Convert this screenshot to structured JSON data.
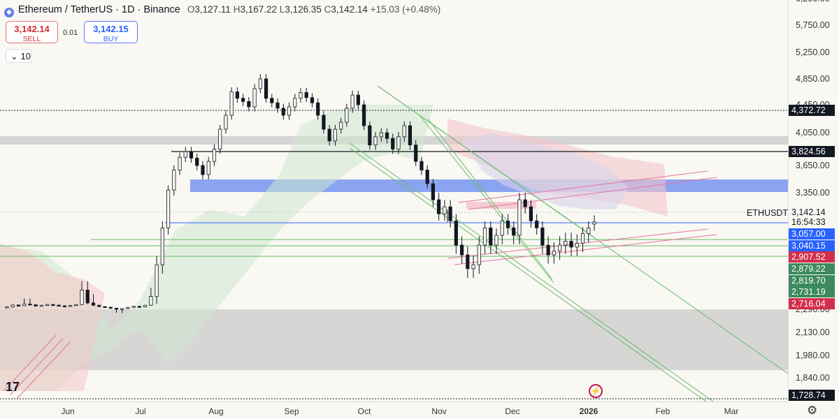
{
  "header": {
    "logo_glyph": "◆",
    "title": "Ethereum / TetherUS · 1D · Binance",
    "open_label": "O",
    "open": "3,127.11",
    "high_label": "H",
    "high": "3,167.22",
    "low_label": "L",
    "low": "3,126.35",
    "close_label": "C",
    "close": "3,142.14",
    "change": "+15.03 (+0.48%)"
  },
  "trade": {
    "sell_price": "3,142.14",
    "sell_label": "SELL",
    "spread": "0.01",
    "buy_price": "3,142.15",
    "buy_label": "BUY"
  },
  "indicators_count": "10",
  "symbol_label": "ETHUSDT",
  "logo_text": "17",
  "bolt_glyph": "⚡",
  "gear_glyph": "⚙",
  "colors": {
    "up": "#131722",
    "down": "#131722",
    "green_line": "#66bb6a",
    "pink_line": "#e57399",
    "blue_zone": "#6f8ff0",
    "grey_zone": "#c9c9c9"
  },
  "chart_data": {
    "type": "candlestick",
    "title": "Ethereum / TetherUS · 1D · Binance",
    "y_ticks": [
      "5,750.00",
      "5,250.00",
      "4,850.00",
      "4,450.00",
      "4,050.00",
      "3,650.00",
      "3,350.00",
      "2,290.00",
      "2,130.00",
      "1,980.00",
      "1,840.00"
    ],
    "y_top_partial": "6,250.00",
    "x_ticks": [
      {
        "label": "Jun",
        "bold": false
      },
      {
        "label": "Jul",
        "bold": false
      },
      {
        "label": "Aug",
        "bold": false
      },
      {
        "label": "Sep",
        "bold": false
      },
      {
        "label": "Oct",
        "bold": false
      },
      {
        "label": "Nov",
        "bold": false
      },
      {
        "label": "Dec",
        "bold": false
      },
      {
        "label": "2026",
        "bold": true
      },
      {
        "label": "Feb",
        "bold": false
      },
      {
        "label": "Mar",
        "bold": false
      }
    ],
    "price_labels": [
      {
        "value": "4,372.72",
        "bg": "#131722",
        "fg": "#ffffff"
      },
      {
        "value": "3,824.56",
        "bg": "#131722",
        "fg": "#ffffff"
      },
      {
        "value": "3,142.14",
        "bg": "#faf8f3",
        "fg": "#131722"
      },
      {
        "value": "16:54:33",
        "bg": "#faf8f3",
        "fg": "#131722"
      },
      {
        "value": "3,057.00",
        "bg": "#2962ff",
        "fg": "#ffffff"
      },
      {
        "value": "3,040.15",
        "bg": "#2962ff",
        "fg": "#ffffff"
      },
      {
        "value": "2,907.52",
        "bg": "#d32f4a",
        "fg": "#ffffff"
      },
      {
        "value": "2,879.22",
        "bg": "#3d8a5f",
        "fg": "#ffffff"
      },
      {
        "value": "2,819.70",
        "bg": "#3d8a5f",
        "fg": "#ffffff"
      },
      {
        "value": "2,731.19",
        "bg": "#3d8a5f",
        "fg": "#ffffff"
      },
      {
        "value": "2,716.04",
        "bg": "#d32f4a",
        "fg": "#ffffff"
      },
      {
        "value": "1,728.74",
        "bg": "#131722",
        "fg": "#ffffff"
      }
    ],
    "ohlc_last": {
      "open": 3127.11,
      "high": 3167.22,
      "low": 3126.35,
      "close": 3142.14
    },
    "price_path": [
      2480,
      2620,
      2560,
      2700,
      2640,
      2540,
      2600,
      2660,
      2610,
      2560,
      2520,
      2590,
      2650,
      2780,
      2720,
      2600,
      2500,
      2450,
      2380,
      2300,
      2350,
      2440,
      2520,
      2480,
      2600,
      2750,
      2900,
      3100,
      3380,
      3600,
      3750,
      3820,
      3740,
      3650,
      3550,
      3700,
      3850,
      4100,
      4300,
      4650,
      4550,
      4500,
      4420,
      4700,
      4850,
      4550,
      4480,
      4400,
      4300,
      4420,
      4550,
      4640,
      4560,
      4480,
      4300,
      4100,
      3950,
      4100,
      4200,
      4400,
      4600,
      4450,
      4150,
      3900,
      4000,
      4050,
      3980,
      3850,
      4000,
      4150,
      3900,
      3700,
      3600,
      3450,
      3300,
      3200,
      3250,
      3150,
      3000,
      2950,
      2880,
      2900,
      3000,
      3100,
      3000,
      3050,
      3150,
      3100,
      3050,
      3300,
      3250,
      3150,
      3100,
      3000,
      2950,
      2970,
      3000,
      3020,
      2990,
      3010,
      3060,
      3100,
      3142
    ]
  }
}
